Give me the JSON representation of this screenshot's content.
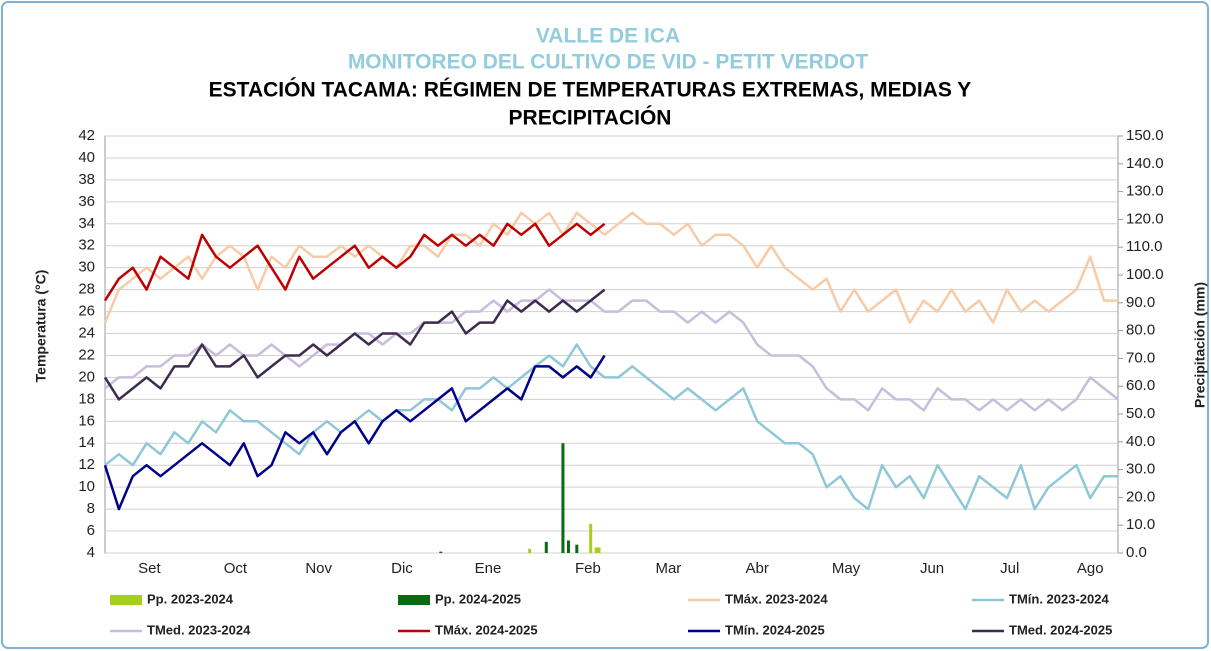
{
  "chart_data": {
    "type": "line",
    "supertitle": [
      "VALLE DE ICA",
      "MONITOREO DEL CULTIVO DE VID - PETIT VERDOT"
    ],
    "title": [
      "ESTACIÓN TACAMA: RÉGIMEN DE TEMPERATURAS EXTREMAS, MEDIAS Y",
      "PRECIPITACIÓN"
    ],
    "ylabel": "Temperatura (°C)",
    "y2label": "Precipitación (mm)",
    "xlim": [
      0,
      365
    ],
    "xticks": [
      {
        "value": 16,
        "label": "Set"
      },
      {
        "value": 47,
        "label": "Oct"
      },
      {
        "value": 77,
        "label": "Nov"
      },
      {
        "value": 107,
        "label": "Dic"
      },
      {
        "value": 138,
        "label": "Ene"
      },
      {
        "value": 174,
        "label": "Feb"
      },
      {
        "value": 203,
        "label": "Mar"
      },
      {
        "value": 235,
        "label": "Abr"
      },
      {
        "value": 267,
        "label": "May"
      },
      {
        "value": 298,
        "label": "Jun"
      },
      {
        "value": 326,
        "label": "Jul"
      },
      {
        "value": 355,
        "label": "Ago"
      }
    ],
    "ylim": [
      4,
      42
    ],
    "yticks": [
      4,
      6,
      8,
      10,
      12,
      14,
      16,
      18,
      20,
      22,
      24,
      26,
      28,
      30,
      32,
      34,
      36,
      38,
      40,
      42
    ],
    "y2lim": [
      0,
      150
    ],
    "y2ticks": [
      {
        "value": 0,
        "label": "0.0"
      },
      {
        "value": 10,
        "label": "10.0"
      },
      {
        "value": 20,
        "label": "20.0"
      },
      {
        "value": 30,
        "label": "30.0"
      },
      {
        "value": 40,
        "label": "40.0"
      },
      {
        "value": 50,
        "label": "50.0"
      },
      {
        "value": 60,
        "label": "60.0"
      },
      {
        "value": 70,
        "label": "70.0"
      },
      {
        "value": 80,
        "label": "80.0"
      },
      {
        "value": 90,
        "label": "90.0"
      },
      {
        "value": 100,
        "label": "100.0"
      },
      {
        "value": 110,
        "label": "110.0"
      },
      {
        "value": 120,
        "label": "120.0"
      },
      {
        "value": 130,
        "label": "130.0"
      },
      {
        "value": 140,
        "label": "140.0"
      },
      {
        "value": 150,
        "label": "150.0"
      }
    ],
    "grid": true,
    "x": [
      0,
      5,
      10,
      15,
      20,
      25,
      30,
      35,
      40,
      45,
      50,
      55,
      60,
      65,
      70,
      75,
      80,
      85,
      90,
      95,
      100,
      105,
      110,
      115,
      120,
      125,
      130,
      135,
      140,
      145,
      150,
      155,
      160,
      165,
      170,
      175,
      180,
      185,
      190,
      195,
      200,
      205,
      210,
      215,
      220,
      225,
      230,
      235,
      240,
      245,
      250,
      255,
      260,
      265,
      270,
      275,
      280,
      285,
      290,
      295,
      300,
      305,
      310,
      315,
      320,
      325,
      330,
      335,
      340,
      345,
      350,
      355,
      360,
      365
    ],
    "series": [
      {
        "name": "Pp. 2023-2024",
        "type": "bar",
        "axis": "y2",
        "color": "#a4cf1c",
        "x": [
          153,
          175,
          177,
          178
        ],
        "values": [
          1.5,
          10.5,
          2,
          2
        ]
      },
      {
        "name": "Pp. 2024-2025",
        "type": "bar",
        "axis": "y2",
        "color": "#0a6a12",
        "x": [
          121,
          159,
          165,
          167,
          170
        ],
        "values": [
          0.5,
          4,
          39.5,
          4.5,
          3
        ]
      },
      {
        "name": "TMáx. 2023-2024",
        "color": "#f8cba6",
        "values": [
          25,
          28,
          29,
          30,
          29,
          30,
          31,
          29,
          31,
          32,
          31,
          28,
          31,
          30,
          32,
          31,
          31,
          32,
          31,
          32,
          31,
          30,
          32,
          32,
          31,
          33,
          33,
          32,
          34,
          33,
          35,
          34,
          35,
          33,
          35,
          34,
          33,
          34,
          35,
          34,
          34,
          33,
          34,
          32,
          33,
          33,
          32,
          30,
          32,
          30,
          29,
          28,
          29,
          26,
          28,
          26,
          27,
          28,
          25,
          27,
          26,
          28,
          26,
          27,
          25,
          28,
          26,
          27,
          26,
          27,
          28,
          31,
          27,
          27
        ]
      },
      {
        "name": "TMín. 2023-2024",
        "color": "#8ec8d6",
        "values": [
          12,
          13,
          12,
          14,
          13,
          15,
          14,
          16,
          15,
          17,
          16,
          16,
          15,
          14,
          13,
          15,
          16,
          15,
          16,
          17,
          16,
          17,
          17,
          18,
          18,
          17,
          19,
          19,
          20,
          19,
          20,
          21,
          22,
          21,
          23,
          21,
          20,
          20,
          21,
          20,
          19,
          18,
          19,
          18,
          17,
          18,
          19,
          16,
          15,
          14,
          14,
          13,
          10,
          11,
          9,
          8,
          12,
          10,
          11,
          9,
          12,
          10,
          8,
          11,
          10,
          9,
          12,
          8,
          10,
          11,
          12,
          9,
          11,
          11
        ]
      },
      {
        "name": "TMed. 2023-2024",
        "color": "#c8bddb",
        "values": [
          19,
          20,
          20,
          21,
          21,
          22,
          22,
          23,
          22,
          23,
          22,
          22,
          23,
          22,
          21,
          22,
          23,
          23,
          24,
          24,
          23,
          24,
          24,
          25,
          25,
          25,
          26,
          26,
          27,
          26,
          27,
          27,
          28,
          27,
          27,
          27,
          26,
          26,
          27,
          27,
          26,
          26,
          25,
          26,
          25,
          26,
          25,
          23,
          22,
          22,
          22,
          21,
          19,
          18,
          18,
          17,
          19,
          18,
          18,
          17,
          19,
          18,
          18,
          17,
          18,
          17,
          18,
          17,
          18,
          17,
          18,
          20,
          19,
          18
        ]
      },
      {
        "name": "TMáx. 2024-2025",
        "color": "#c00000",
        "values": [
          27,
          29,
          30,
          28,
          31,
          30,
          29,
          33,
          31,
          30,
          31,
          32,
          30,
          28,
          31,
          29,
          30,
          31,
          32,
          30,
          31,
          30,
          31,
          33,
          32,
          33,
          32,
          33,
          32,
          34,
          33,
          34,
          32,
          33,
          34,
          33,
          34,
          null,
          null,
          null,
          null,
          null,
          null,
          null,
          null,
          null,
          null,
          null,
          null,
          null,
          null,
          null,
          null,
          null,
          null,
          null,
          null,
          null,
          null,
          null,
          null,
          null,
          null,
          null,
          null,
          null,
          null,
          null,
          null,
          null,
          null,
          null,
          null,
          null
        ]
      },
      {
        "name": "TMín. 2024-2025",
        "color": "#00008b",
        "values": [
          12,
          8,
          11,
          12,
          11,
          12,
          13,
          14,
          13,
          12,
          14,
          11,
          12,
          15,
          14,
          15,
          13,
          15,
          16,
          14,
          16,
          17,
          16,
          17,
          18,
          19,
          16,
          17,
          18,
          19,
          18,
          21,
          21,
          20,
          21,
          20,
          22,
          null,
          null,
          null,
          null,
          null,
          null,
          null,
          null,
          null,
          null,
          null,
          null,
          null,
          null,
          null,
          null,
          null,
          null,
          null,
          null,
          null,
          null,
          null,
          null,
          null,
          null,
          null,
          null,
          null,
          null,
          null,
          null,
          null,
          null,
          null,
          null,
          null
        ]
      },
      {
        "name": "TMed. 2024-2025",
        "color": "#3d2c4f",
        "values": [
          20,
          18,
          19,
          20,
          19,
          21,
          21,
          23,
          21,
          21,
          22,
          20,
          21,
          22,
          22,
          23,
          22,
          23,
          24,
          23,
          24,
          24,
          23,
          25,
          25,
          26,
          24,
          25,
          25,
          27,
          26,
          27,
          26,
          27,
          26,
          27,
          28,
          null,
          null,
          null,
          null,
          null,
          null,
          null,
          null,
          null,
          null,
          null,
          null,
          null,
          null,
          null,
          null,
          null,
          null,
          null,
          null,
          null,
          null,
          null,
          null,
          null,
          null,
          null,
          null,
          null,
          null,
          null,
          null,
          null,
          null,
          null,
          null,
          null
        ]
      }
    ]
  }
}
